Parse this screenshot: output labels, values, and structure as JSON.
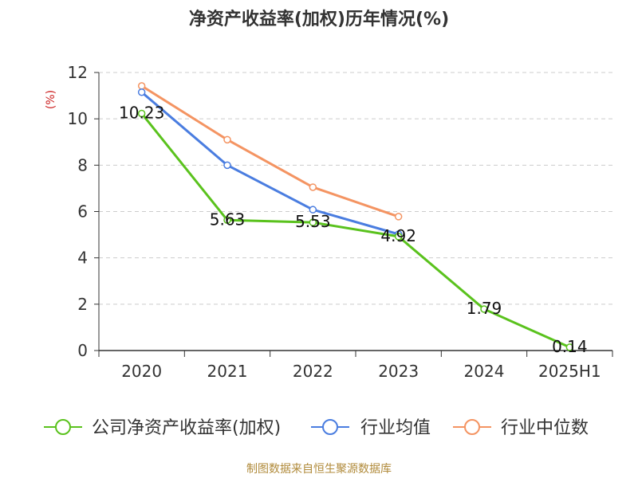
{
  "chart_data": {
    "type": "line",
    "title": "净资产收益率(加权)历年情况(%)",
    "ylabel": "(%)",
    "xlabel": "",
    "categories": [
      "2020",
      "2021",
      "2022",
      "2023",
      "2024",
      "2025H1"
    ],
    "ylim": [
      0,
      12
    ],
    "yticks": [
      "0",
      "2",
      "4",
      "6",
      "8",
      "10",
      "12"
    ],
    "grid": true,
    "legend_position": "bottom",
    "series": [
      {
        "name": "公司净资产收益率(加权)",
        "color": "#5ac21d",
        "values": [
          10.23,
          5.63,
          5.53,
          4.92,
          1.79,
          0.14
        ],
        "labels": [
          "10.23",
          "5.63",
          "5.53",
          "4.92",
          "1.79",
          "0.14"
        ]
      },
      {
        "name": "行业均值",
        "color": "#4a7de0",
        "values": [
          11.15,
          8.0,
          6.08,
          5.02,
          null,
          null
        ]
      },
      {
        "name": "行业中位数",
        "color": "#f49462",
        "values": [
          11.42,
          9.1,
          7.05,
          5.78,
          null,
          null
        ]
      }
    ]
  },
  "source": "制图数据来自恒生聚源数据库",
  "colors": {
    "ylabel": "#cc2222",
    "axis": "#333333",
    "grid": "#cccccc",
    "source": "#b08a3a"
  }
}
